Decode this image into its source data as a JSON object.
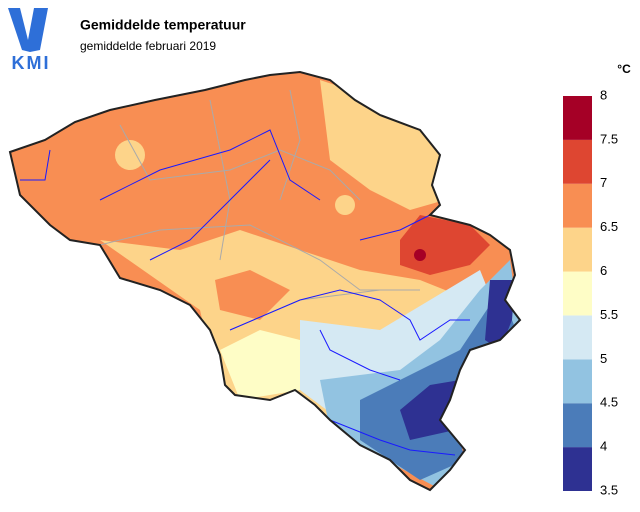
{
  "header": {
    "logo": "KMI",
    "title": "Gemiddelde temperatuur",
    "subtitle": "gemiddelde februari 2019"
  },
  "legend": {
    "unit": "°C",
    "ticks": [
      3.5,
      4,
      4.5,
      5,
      5.5,
      6,
      6.5,
      7,
      7.5,
      8
    ],
    "colors": [
      "#2e3192",
      "#4b7cb9",
      "#92c3e1",
      "#d5e9f3",
      "#fefdc6",
      "#fdd48a",
      "#f88e53",
      "#de4631",
      "#a50026"
    ]
  }
}
